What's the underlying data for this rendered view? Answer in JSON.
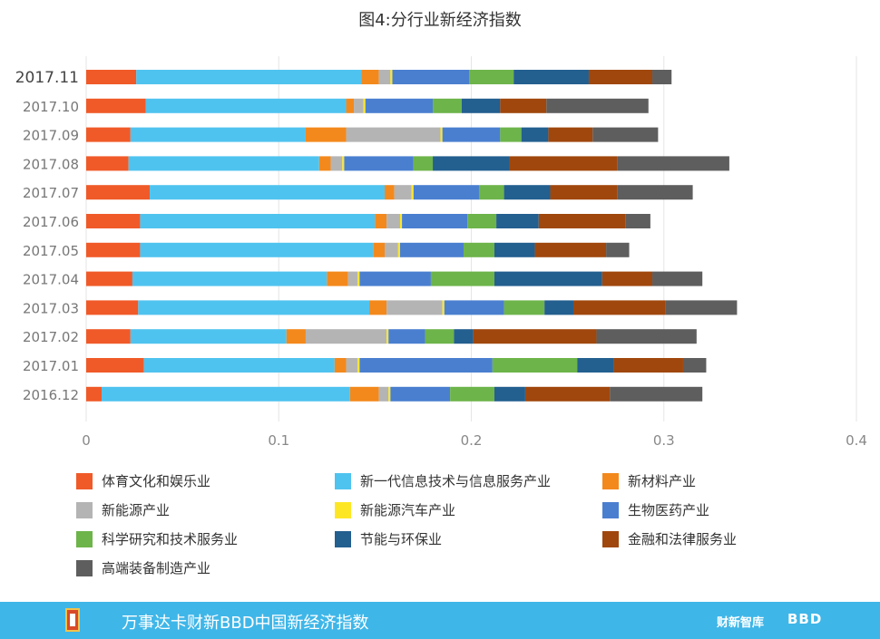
{
  "chart_data": {
    "type": "bar",
    "orientation": "horizontal",
    "stacked": true,
    "title": "图4:分行业新经济指数",
    "categories": [
      "2017.11",
      "2017.10",
      "2017.09",
      "2017.08",
      "2017.07",
      "2017.06",
      "2017.05",
      "2017.04",
      "2017.03",
      "2017.02",
      "2017.01",
      "2016.12"
    ],
    "xlim": [
      0,
      0.4
    ],
    "xticks": [
      "0",
      "0.1",
      "0.2",
      "0.3",
      "0.4"
    ],
    "grid": true,
    "legend_position": "bottom",
    "series": [
      {
        "name": "体育文化和娱乐业",
        "color": "#f05a28",
        "values": [
          0.026,
          0.031,
          0.023,
          0.022,
          0.033,
          0.028,
          0.028,
          0.024,
          0.027,
          0.023,
          0.03,
          0.008
        ]
      },
      {
        "name": "新一代信息技术与信息服务产业",
        "color": "#4fc3ef",
        "values": [
          0.117,
          0.104,
          0.091,
          0.099,
          0.122,
          0.122,
          0.121,
          0.101,
          0.12,
          0.081,
          0.099,
          0.129
        ]
      },
      {
        "name": "新材料产业",
        "color": "#f3891c",
        "values": [
          0.009,
          0.004,
          0.021,
          0.006,
          0.005,
          0.006,
          0.006,
          0.011,
          0.009,
          0.01,
          0.006,
          0.015
        ]
      },
      {
        "name": "新能源产业",
        "color": "#b4b4b4",
        "values": [
          0.006,
          0.005,
          0.049,
          0.006,
          0.009,
          0.007,
          0.007,
          0.005,
          0.029,
          0.042,
          0.006,
          0.005
        ]
      },
      {
        "name": "新能源汽车产业",
        "color": "#fde725",
        "values": [
          0.001,
          0.001,
          0.001,
          0.001,
          0.001,
          0.001,
          0.001,
          0.001,
          0.001,
          0.001,
          0.001,
          0.001
        ]
      },
      {
        "name": "生物医药产业",
        "color": "#4a7fd0",
        "values": [
          0.04,
          0.035,
          0.03,
          0.036,
          0.034,
          0.034,
          0.033,
          0.037,
          0.031,
          0.019,
          0.069,
          0.031
        ]
      },
      {
        "name": "科学研究和技术服务业",
        "color": "#6db44a",
        "values": [
          0.023,
          0.015,
          0.011,
          0.01,
          0.013,
          0.015,
          0.016,
          0.033,
          0.021,
          0.015,
          0.044,
          0.023
        ]
      },
      {
        "name": "节能与环保业",
        "color": "#235f8f",
        "values": [
          0.039,
          0.02,
          0.014,
          0.04,
          0.024,
          0.022,
          0.021,
          0.056,
          0.015,
          0.01,
          0.019,
          0.016
        ]
      },
      {
        "name": "金融和法律服务业",
        "color": "#a0470d",
        "values": [
          0.033,
          0.024,
          0.023,
          0.056,
          0.035,
          0.045,
          0.037,
          0.026,
          0.048,
          0.064,
          0.036,
          0.044
        ]
      },
      {
        "name": "高端装备制造产业",
        "color": "#5e5e5e",
        "values": [
          0.01,
          0.053,
          0.034,
          0.058,
          0.039,
          0.013,
          0.012,
          0.026,
          0.037,
          0.052,
          0.012,
          0.048
        ]
      }
    ]
  },
  "footer": {
    "text": "万事达卡财新BBD中国新经济指数",
    "brand1": "财新智库",
    "brand2": "BBD"
  }
}
